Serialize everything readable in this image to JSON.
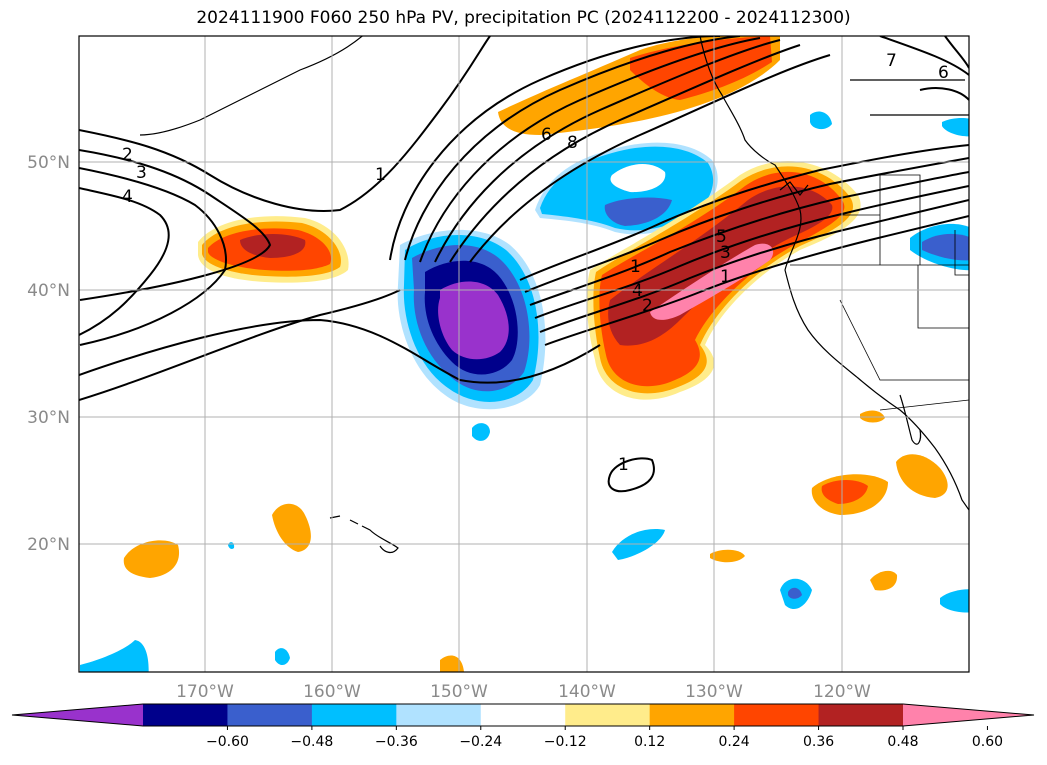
{
  "title": "2024111900 F060 250 hPa PV, precipitation PC (2024112200 - 2024112300)",
  "lat_ticks": [
    "50°N",
    "40°N",
    "30°N",
    "20°N"
  ],
  "lon_ticks": [
    "170°W",
    "160°W",
    "150°W",
    "140°W",
    "130°W",
    "120°W"
  ],
  "colorbar": {
    "colors": [
      "#9932cc",
      "#00008b",
      "#3a5fcd",
      "#00bfff",
      "#b0e2ff",
      "#ffffff",
      "#ffec8b",
      "#ffa500",
      "#ff4500",
      "#b22222",
      "#ff82ab"
    ],
    "labels": [
      "−0.60",
      "−0.48",
      "−0.36",
      "−0.24",
      "−0.12",
      "0.12",
      "0.24",
      "0.36",
      "0.48",
      "0.60"
    ]
  },
  "contour_labels": [
    "2",
    "3",
    "4",
    "1",
    "6",
    "8",
    "1",
    "5",
    "3",
    "1",
    "4",
    "2",
    "1",
    "7",
    "6"
  ]
}
